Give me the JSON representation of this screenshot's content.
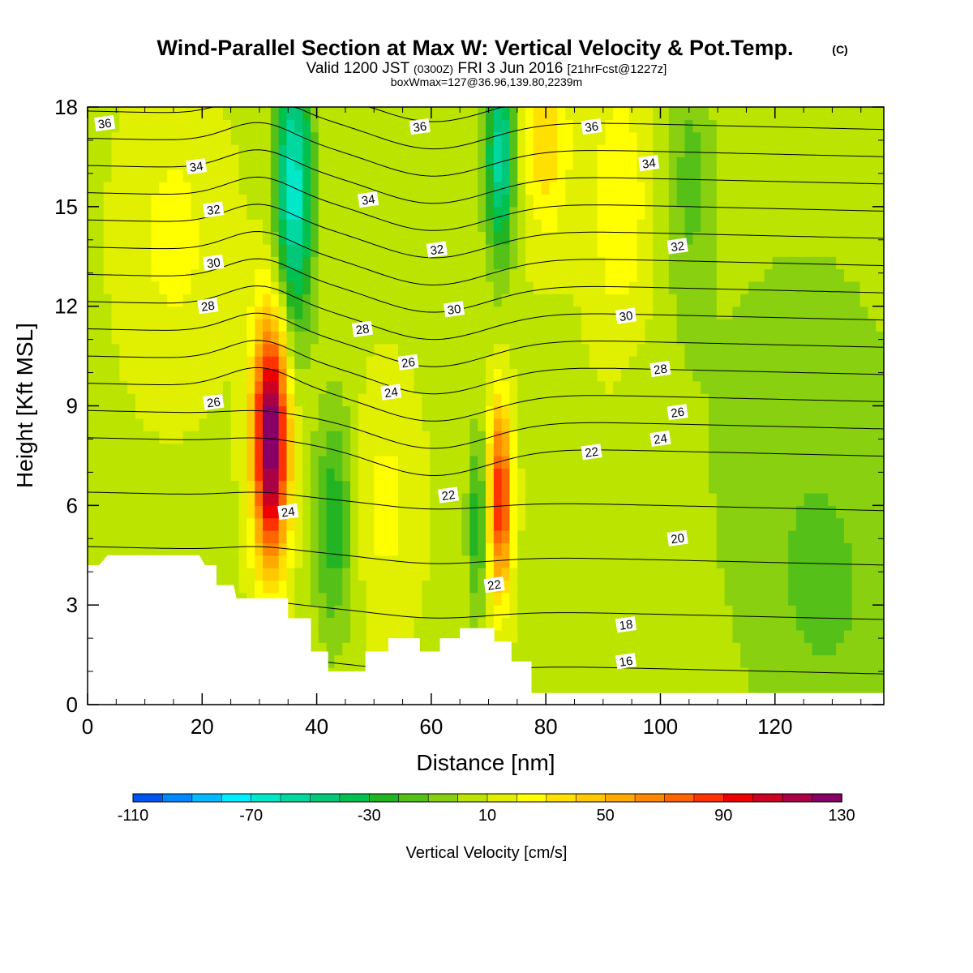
{
  "chart_data": {
    "type": "heatmap",
    "title": "Wind-Parallel Section at Max W: Vertical Velocity & Pot.Temp.",
    "title_mark": "(C)",
    "subtitle": {
      "prefix": "Valid 1200 JST",
      "utc": "(0300Z)",
      "date": "FRI 3 Jun 2016",
      "fcst": "[21hrFcst@1227z]"
    },
    "box_info": "boxWmax=127@36.96,139.80,2239m",
    "xlabel": "Distance [nm]",
    "ylabel": "Height [Kft MSL]",
    "xlim": [
      0,
      139
    ],
    "ylim": [
      0,
      18
    ],
    "x_ticks": [
      0,
      20,
      40,
      60,
      80,
      100,
      120
    ],
    "y_ticks": [
      0,
      3,
      6,
      9,
      12,
      15,
      18
    ],
    "colorbar": {
      "label": "Vertical Velocity [cm/s]",
      "tick_labels": [
        "-110",
        "-70",
        "-30",
        "10",
        "50",
        "90",
        "130"
      ],
      "tick_values": [
        -110,
        -70,
        -30,
        10,
        50,
        90,
        130
      ],
      "min": -110,
      "max": 130,
      "step": 10,
      "colors": [
        "#0000ee",
        "#0055ee",
        "#0088ff",
        "#00bbff",
        "#00eeff",
        "#00e8c8",
        "#00d8a0",
        "#00c878",
        "#00c050",
        "#22b422",
        "#55c018",
        "#88d010",
        "#bbe400",
        "#e0f000",
        "#ffff00",
        "#ffe000",
        "#ffc800",
        "#ffaa00",
        "#ff8800",
        "#ff6600",
        "#ff3300",
        "#ee0000",
        "#cc0022",
        "#aa0044",
        "#880066",
        "#660099"
      ]
    },
    "w_features": [
      {
        "x": 32,
        "z": 8.0,
        "w": 127,
        "sx": 2.2,
        "sz": 2.6
      },
      {
        "x": 72,
        "z": 6.2,
        "w": 85,
        "sx": 1.4,
        "sz": 2.0
      },
      {
        "x": 36,
        "z": 15.5,
        "w": -75,
        "sx": 2.3,
        "sz": 3.0
      },
      {
        "x": 72,
        "z": 16.5,
        "w": -65,
        "sx": 1.8,
        "sz": 2.2
      },
      {
        "x": 43,
        "z": 5.5,
        "w": -35,
        "sx": 2.5,
        "sz": 2.5
      },
      {
        "x": 68,
        "z": 5.5,
        "w": -35,
        "sx": 1.2,
        "sz": 2.0
      },
      {
        "x": 80,
        "z": 17,
        "w": 30,
        "sx": 3.0,
        "sz": 2.0
      },
      {
        "x": 93,
        "z": 15,
        "w": 20,
        "sx": 4.0,
        "sz": 3.0
      },
      {
        "x": 15,
        "z": 14,
        "w": 15,
        "sx": 6.0,
        "sz": 3.0
      },
      {
        "x": 52,
        "z": 6,
        "w": 15,
        "sx": 4.0,
        "sz": 2.5
      },
      {
        "x": 105,
        "z": 16,
        "w": -20,
        "sx": 3.0,
        "sz": 3.0
      },
      {
        "x": 125,
        "z": 8,
        "w": -15,
        "sx": 14.0,
        "sz": 5.0
      },
      {
        "x": 130,
        "z": 2,
        "w": -12,
        "sx": 10.0,
        "sz": 3.0
      },
      {
        "x": 96,
        "z": 6,
        "w": -5,
        "sx": 3.0,
        "sz": 3.0
      }
    ],
    "w_background": 8,
    "theta_contours": [
      {
        "level": 16,
        "label_x": 94,
        "label_z": 1.3
      },
      {
        "level": 18,
        "label_x": 94,
        "label_z": 2.4
      },
      {
        "level": 20,
        "label_x": 103,
        "label_z": 5.0
      },
      {
        "level": 22,
        "label_x": 63,
        "label_z": 6.3
      },
      {
        "level": 22,
        "label_x": 88,
        "label_z": 7.6
      },
      {
        "level": 22,
        "label_x": 71,
        "label_z": 3.6
      },
      {
        "level": 24,
        "label_x": 35,
        "label_z": 5.8
      },
      {
        "level": 24,
        "label_x": 53,
        "label_z": 9.4
      },
      {
        "level": 24,
        "label_x": 100,
        "label_z": 8.0
      },
      {
        "level": 26,
        "label_x": 22,
        "label_z": 9.1
      },
      {
        "level": 26,
        "label_x": 56,
        "label_z": 10.3
      },
      {
        "level": 26,
        "label_x": 103,
        "label_z": 8.8
      },
      {
        "level": 28,
        "label_x": 21,
        "label_z": 12.0
      },
      {
        "level": 28,
        "label_x": 48,
        "label_z": 11.3
      },
      {
        "level": 28,
        "label_x": 100,
        "label_z": 10.1
      },
      {
        "level": 30,
        "label_x": 22,
        "label_z": 13.3
      },
      {
        "level": 30,
        "label_x": 64,
        "label_z": 11.9
      },
      {
        "level": 30,
        "label_x": 94,
        "label_z": 11.7
      },
      {
        "level": 32,
        "label_x": 22,
        "label_z": 14.9
      },
      {
        "level": 32,
        "label_x": 61,
        "label_z": 13.7
      },
      {
        "level": 32,
        "label_x": 103,
        "label_z": 13.8
      },
      {
        "level": 34,
        "label_x": 19,
        "label_z": 16.2
      },
      {
        "level": 34,
        "label_x": 49,
        "label_z": 15.2
      },
      {
        "level": 34,
        "label_x": 98,
        "label_z": 16.3
      },
      {
        "level": 36,
        "label_x": 3,
        "label_z": 17.5
      },
      {
        "level": 36,
        "label_x": 58,
        "label_z": 17.4
      },
      {
        "level": 36,
        "label_x": 88,
        "label_z": 17.4
      }
    ],
    "terrain": [
      [
        0,
        4.2
      ],
      [
        2,
        4.2
      ],
      [
        3.5,
        4.5
      ],
      [
        19.5,
        4.5
      ],
      [
        20.5,
        4.2
      ],
      [
        22.5,
        4.2
      ],
      [
        22.5,
        3.6
      ],
      [
        25.5,
        3.6
      ],
      [
        26,
        3.2
      ],
      [
        32,
        3.2
      ],
      [
        35,
        3.2
      ],
      [
        35,
        2.6
      ],
      [
        36,
        2.6
      ],
      [
        39,
        2.6
      ],
      [
        39,
        1.6
      ],
      [
        42,
        1.6
      ],
      [
        42,
        1.0
      ],
      [
        48.5,
        1.0
      ],
      [
        48.5,
        1.6
      ],
      [
        52.5,
        1.6
      ],
      [
        52.5,
        2.0
      ],
      [
        58,
        2.0
      ],
      [
        58,
        1.6
      ],
      [
        61.5,
        1.6
      ],
      [
        61.5,
        2.0
      ],
      [
        65,
        2.0
      ],
      [
        65,
        2.3
      ],
      [
        71,
        2.3
      ],
      [
        71,
        1.9
      ],
      [
        74,
        1.9
      ],
      [
        74,
        1.3
      ],
      [
        77.5,
        1.3
      ],
      [
        77.5,
        0.35
      ],
      [
        139,
        0.35
      ]
    ]
  }
}
